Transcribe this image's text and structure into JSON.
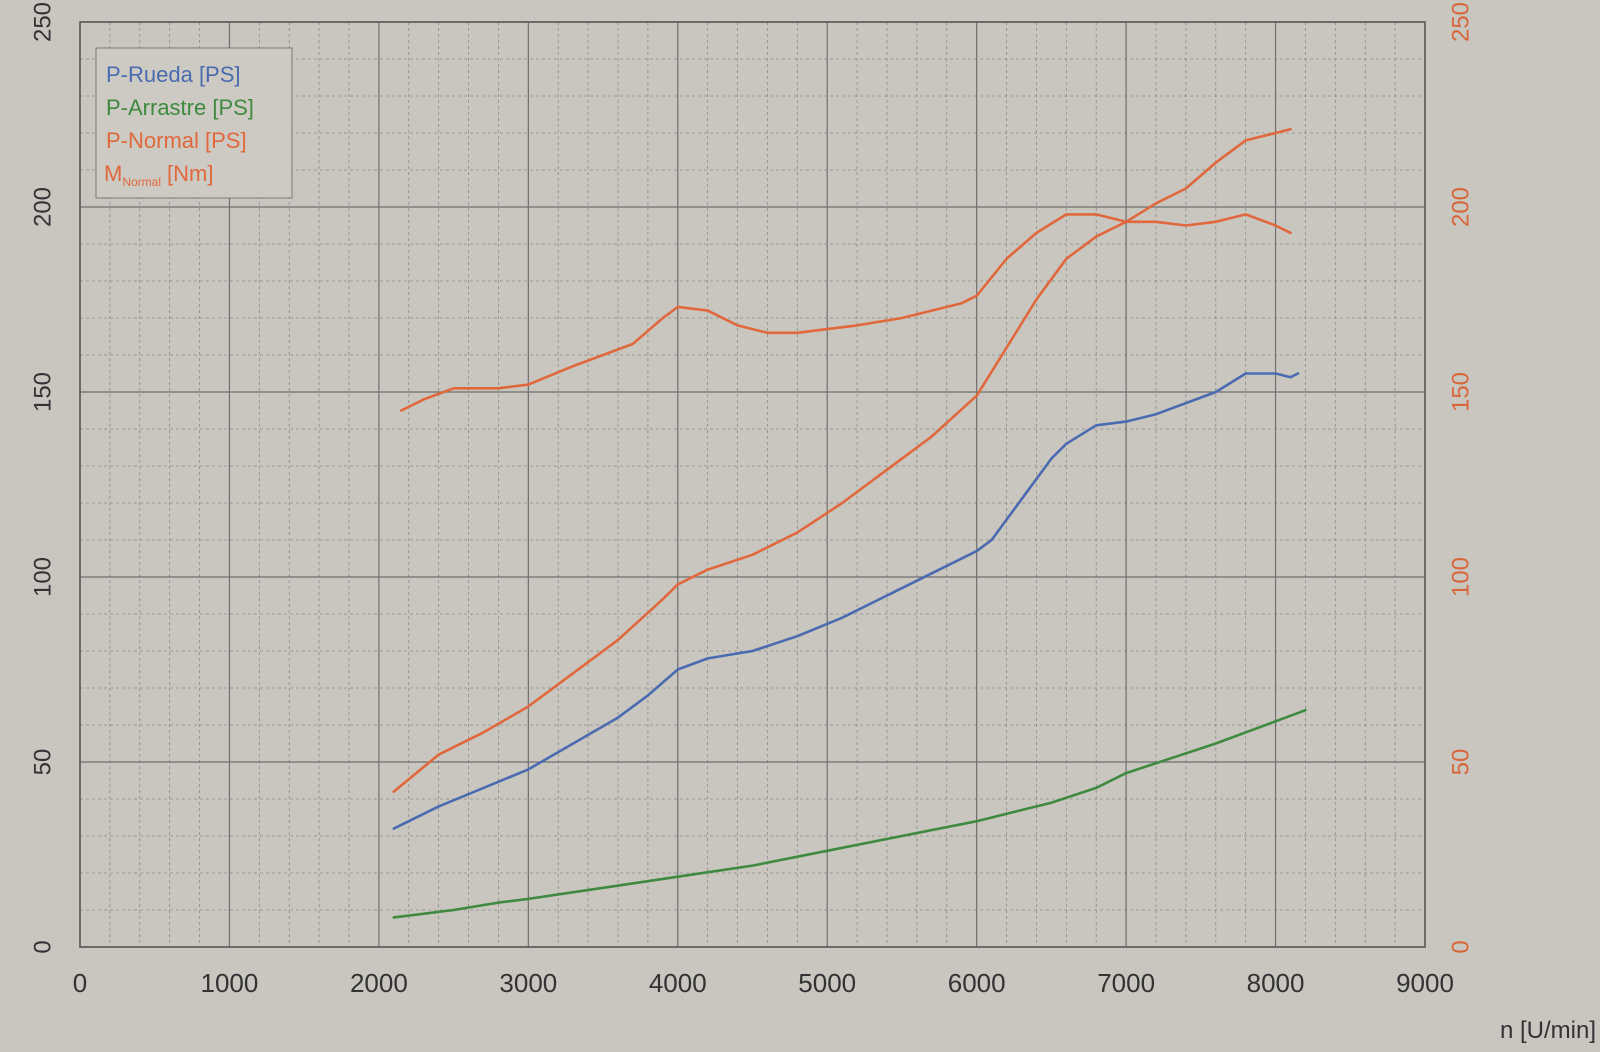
{
  "chart_data": {
    "type": "line",
    "xlabel": "n [U/min]",
    "xlim": [
      0,
      9000
    ],
    "x_ticks": [
      0,
      1000,
      2000,
      3000,
      4000,
      5000,
      6000,
      7000,
      8000,
      9000
    ],
    "ylim_left": [
      0,
      250
    ],
    "ylim_right": [
      0,
      250
    ],
    "y_ticks": [
      0,
      50,
      100,
      150,
      200,
      250
    ],
    "grid": true,
    "legend_position": "top-left",
    "colors": {
      "background": "#c9c6c0",
      "grid_major": "#6f6f6f",
      "grid_minor": "#8a8a88",
      "right_axis": "#d9663a"
    },
    "series": [
      {
        "name": "P-Rueda [PS]",
        "legend_label": "P-Rueda [PS]",
        "color": "#4a6bb0",
        "axis": "left",
        "points": [
          [
            2100,
            32
          ],
          [
            2400,
            38
          ],
          [
            2700,
            43
          ],
          [
            3000,
            48
          ],
          [
            3300,
            55
          ],
          [
            3600,
            62
          ],
          [
            3800,
            68
          ],
          [
            4000,
            75
          ],
          [
            4200,
            78
          ],
          [
            4500,
            80
          ],
          [
            4800,
            84
          ],
          [
            5100,
            89
          ],
          [
            5400,
            95
          ],
          [
            5700,
            101
          ],
          [
            6000,
            107
          ],
          [
            6100,
            110
          ],
          [
            6300,
            121
          ],
          [
            6500,
            132
          ],
          [
            6600,
            136
          ],
          [
            6800,
            141
          ],
          [
            7000,
            142
          ],
          [
            7200,
            144
          ],
          [
            7400,
            147
          ],
          [
            7600,
            150
          ],
          [
            7800,
            155
          ],
          [
            8000,
            155
          ],
          [
            8100,
            154
          ],
          [
            8150,
            155
          ]
        ]
      },
      {
        "name": "P-Arrastre [PS]",
        "legend_label": "P-Arrastre [PS]",
        "color": "#3e8a3e",
        "axis": "left",
        "points": [
          [
            2100,
            8
          ],
          [
            2500,
            10
          ],
          [
            2800,
            12
          ],
          [
            3000,
            13
          ],
          [
            3500,
            16
          ],
          [
            4000,
            19
          ],
          [
            4500,
            22
          ],
          [
            5000,
            26
          ],
          [
            5500,
            30
          ],
          [
            6000,
            34
          ],
          [
            6500,
            39
          ],
          [
            6800,
            43
          ],
          [
            7000,
            47
          ],
          [
            7300,
            51
          ],
          [
            7600,
            55
          ],
          [
            8000,
            61
          ],
          [
            8200,
            64
          ]
        ]
      },
      {
        "name": "P-Normal [PS]",
        "legend_label": "P-Normal [PS]",
        "color": "#e0683c",
        "axis": "left",
        "points": [
          [
            2100,
            42
          ],
          [
            2400,
            52
          ],
          [
            2700,
            58
          ],
          [
            3000,
            65
          ],
          [
            3300,
            74
          ],
          [
            3600,
            83
          ],
          [
            3900,
            94
          ],
          [
            4000,
            98
          ],
          [
            4200,
            102
          ],
          [
            4500,
            106
          ],
          [
            4800,
            112
          ],
          [
            5100,
            120
          ],
          [
            5400,
            129
          ],
          [
            5700,
            138
          ],
          [
            6000,
            149
          ],
          [
            6200,
            162
          ],
          [
            6400,
            175
          ],
          [
            6600,
            186
          ],
          [
            6800,
            192
          ],
          [
            7000,
            196
          ],
          [
            7200,
            201
          ],
          [
            7400,
            205
          ],
          [
            7600,
            212
          ],
          [
            7800,
            218
          ],
          [
            8000,
            220
          ],
          [
            8100,
            221
          ]
        ]
      },
      {
        "name_main": "M",
        "name_sub": "Normal",
        "name_unit": "[Nm]",
        "color": "#e0683c",
        "axis": "right",
        "points": [
          [
            2150,
            145
          ],
          [
            2300,
            148
          ],
          [
            2500,
            151
          ],
          [
            2800,
            151
          ],
          [
            3000,
            152
          ],
          [
            3300,
            157
          ],
          [
            3500,
            160
          ],
          [
            3700,
            163
          ],
          [
            3900,
            170
          ],
          [
            4000,
            173
          ],
          [
            4200,
            172
          ],
          [
            4400,
            168
          ],
          [
            4600,
            166
          ],
          [
            4800,
            166
          ],
          [
            5000,
            167
          ],
          [
            5200,
            168
          ],
          [
            5500,
            170
          ],
          [
            5700,
            172
          ],
          [
            5900,
            174
          ],
          [
            6000,
            176
          ],
          [
            6200,
            186
          ],
          [
            6400,
            193
          ],
          [
            6600,
            198
          ],
          [
            6800,
            198
          ],
          [
            7000,
            196
          ],
          [
            7200,
            196
          ],
          [
            7400,
            195
          ],
          [
            7600,
            196
          ],
          [
            7800,
            198
          ],
          [
            8000,
            195
          ],
          [
            8100,
            193
          ]
        ]
      }
    ]
  }
}
